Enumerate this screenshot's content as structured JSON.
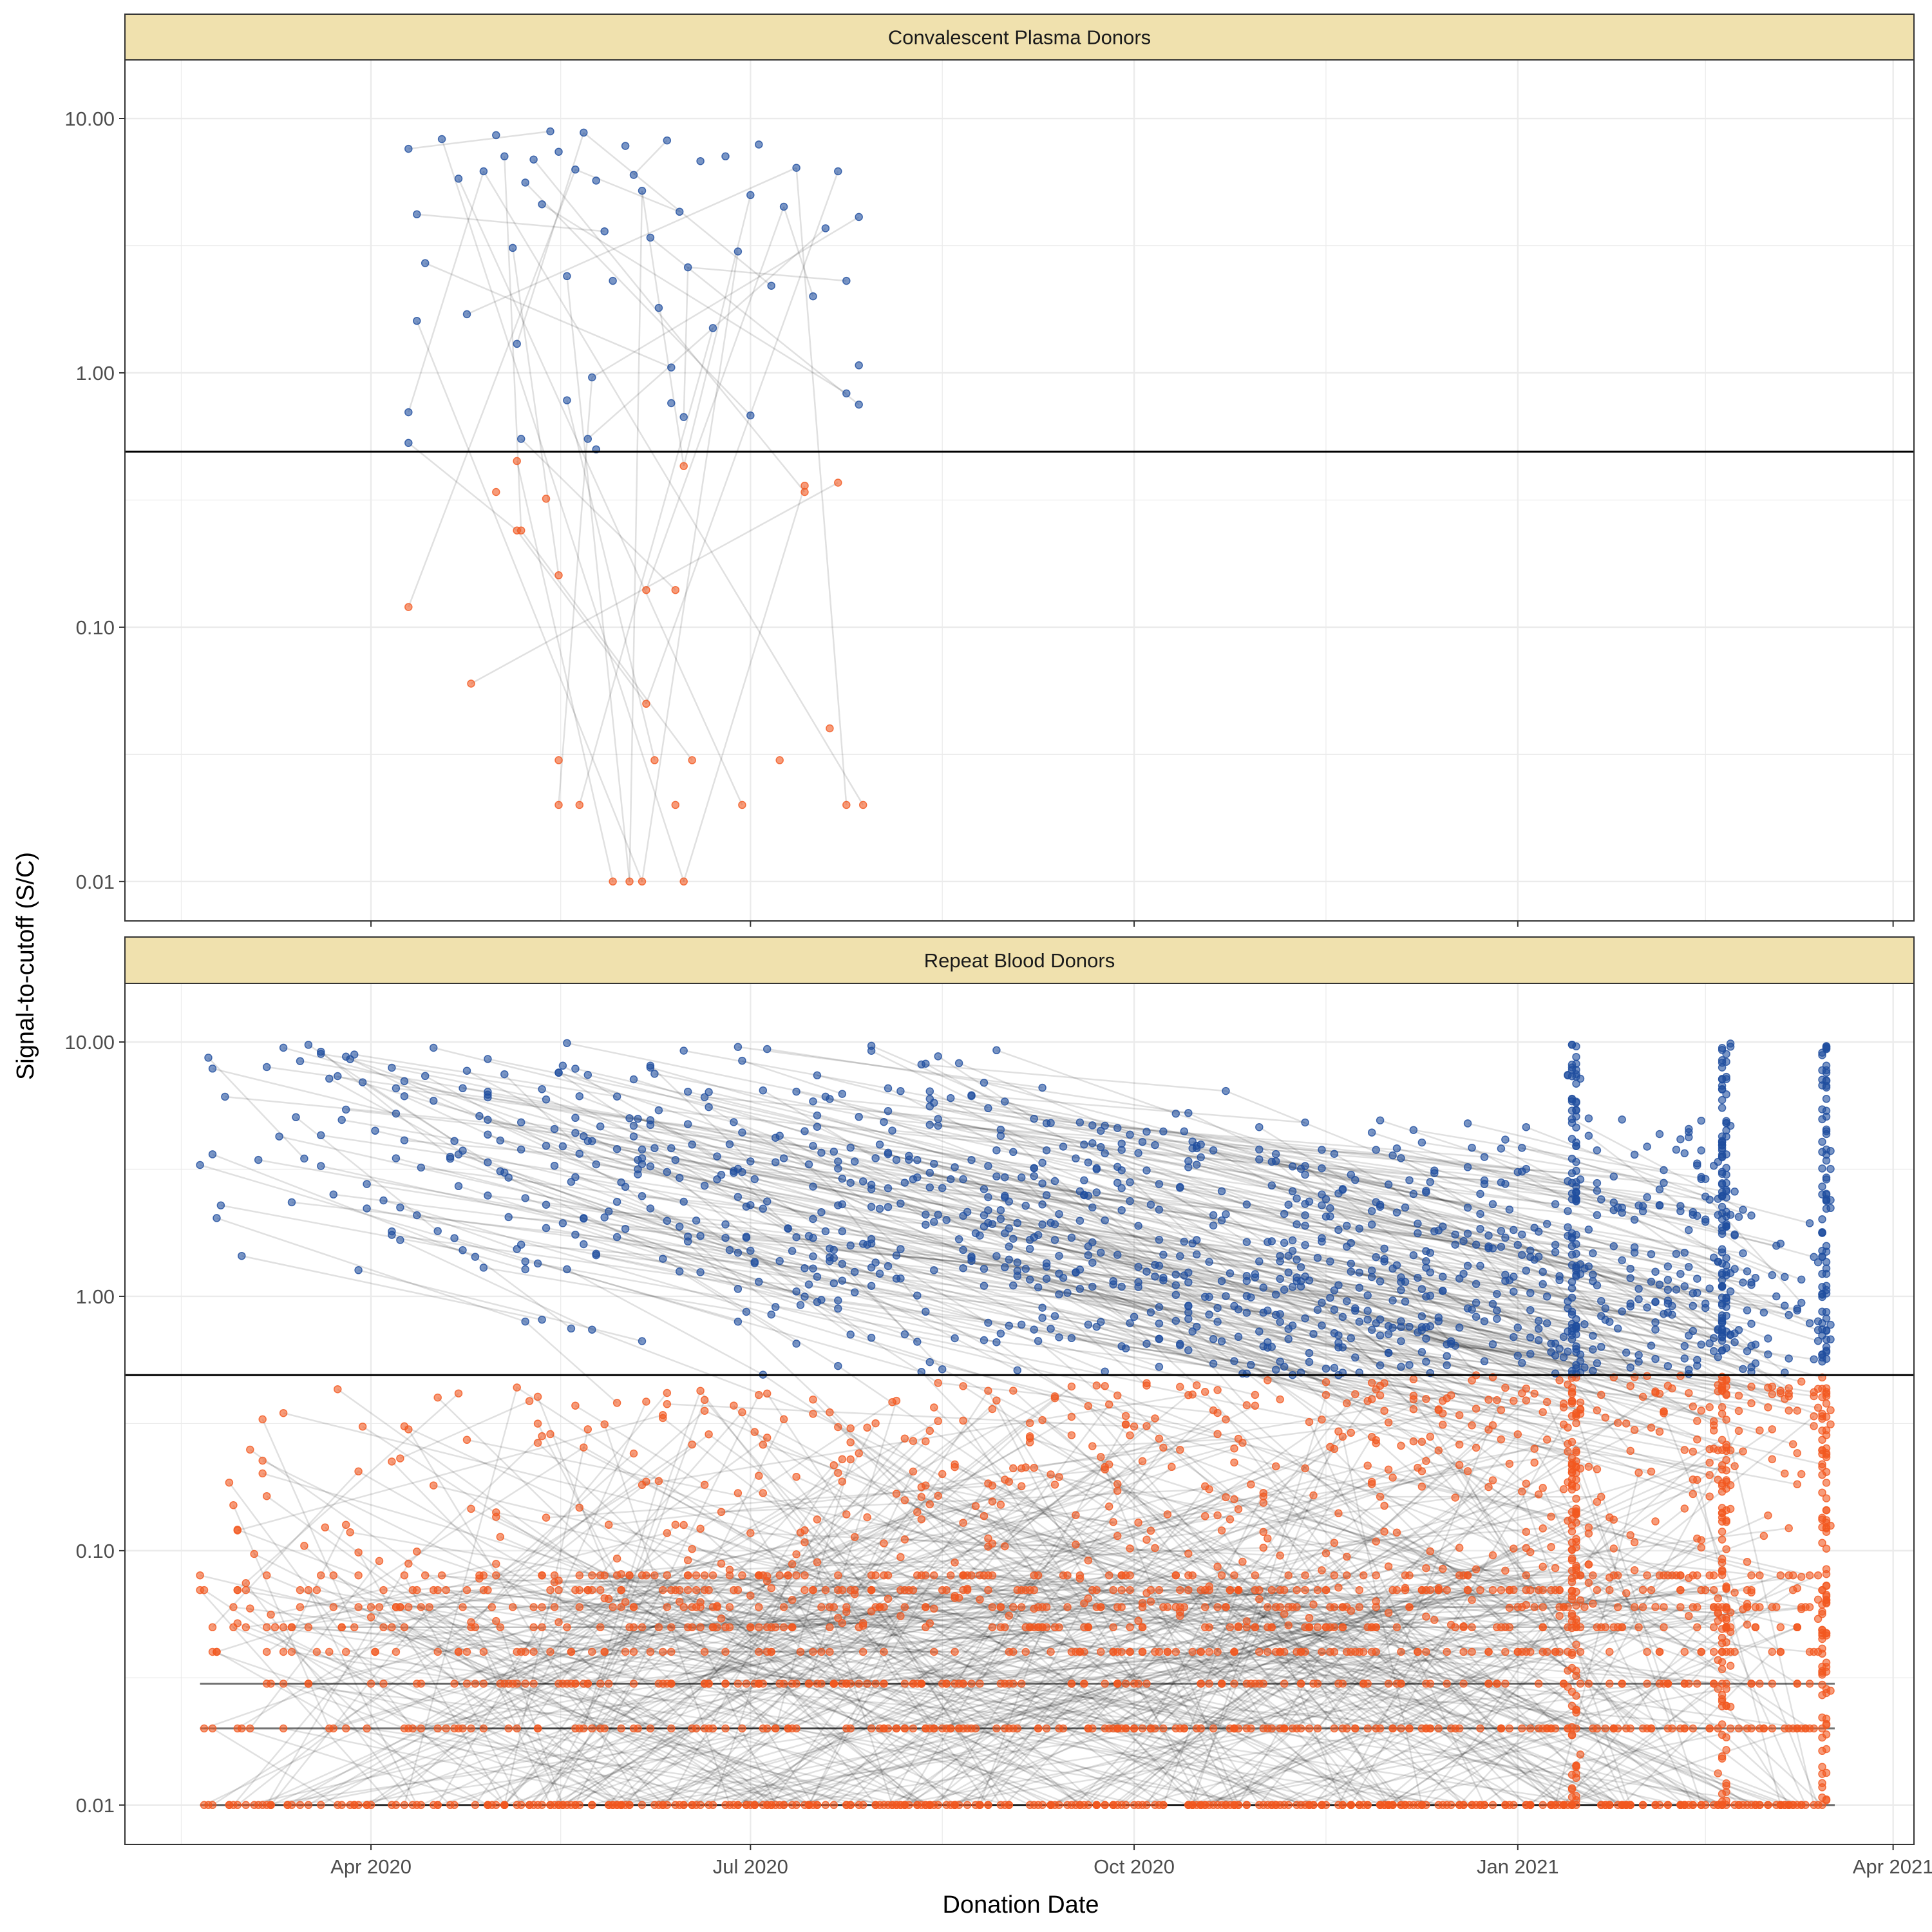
{
  "chart_data": {
    "type": "scatter",
    "xlabel": "Donation Date",
    "ylabel": "Signal-to-cutoff (S/C)",
    "y_scale": "log10",
    "ylim": [
      0.007,
      17
    ],
    "xlim": [
      "2020-02-02",
      "2021-04-06"
    ],
    "x_ticks": [
      {
        "date": "2020-04-01",
        "label": "Apr 2020"
      },
      {
        "date": "2020-07-01",
        "label": "Jul 2020"
      },
      {
        "date": "2020-10-01",
        "label": "Oct 2020"
      },
      {
        "date": "2021-01-01",
        "label": "Jan 2021"
      },
      {
        "date": "2021-04-01",
        "label": "Apr 2021"
      }
    ],
    "y_ticks": [
      {
        "value": 0.01,
        "label": "0.01"
      },
      {
        "value": 0.1,
        "label": "0.10"
      },
      {
        "value": 1,
        "label": "1.00"
      },
      {
        "value": 10,
        "label": "10.00"
      }
    ],
    "cutoff": 0.49,
    "grid": true,
    "colors": {
      "positive": "#1F4E9F",
      "negative": "#F2581F",
      "line": "#000000",
      "strip": "#F0E1AE",
      "grid": "#EBEBEB"
    },
    "panels": [
      {
        "title": "Convalescent Plasma Donors",
        "points": [
          {
            "x": "2020-04-10",
            "y": 0.7
          },
          {
            "x": "2020-04-10",
            "y": 0.53
          },
          {
            "x": "2020-04-10",
            "y": 7.6
          },
          {
            "x": "2020-04-12",
            "y": 4.2
          },
          {
            "x": "2020-04-14",
            "y": 2.7
          },
          {
            "x": "2020-04-12",
            "y": 1.6
          },
          {
            "x": "2020-04-18",
            "y": 8.3
          },
          {
            "x": "2020-04-22",
            "y": 5.8
          },
          {
            "x": "2020-04-24",
            "y": 1.7
          },
          {
            "x": "2020-04-28",
            "y": 6.2
          },
          {
            "x": "2020-05-01",
            "y": 8.6
          },
          {
            "x": "2020-05-03",
            "y": 7.1
          },
          {
            "x": "2020-05-05",
            "y": 3.1
          },
          {
            "x": "2020-05-06",
            "y": 1.3
          },
          {
            "x": "2020-05-08",
            "y": 5.6
          },
          {
            "x": "2020-05-10",
            "y": 6.9
          },
          {
            "x": "2020-05-12",
            "y": 4.6
          },
          {
            "x": "2020-05-14",
            "y": 8.9
          },
          {
            "x": "2020-05-16",
            "y": 7.4
          },
          {
            "x": "2020-05-18",
            "y": 2.4
          },
          {
            "x": "2020-05-20",
            "y": 6.3
          },
          {
            "x": "2020-05-22",
            "y": 8.8
          },
          {
            "x": "2020-05-25",
            "y": 5.7
          },
          {
            "x": "2020-05-27",
            "y": 3.6
          },
          {
            "x": "2020-05-29",
            "y": 2.3
          },
          {
            "x": "2020-06-01",
            "y": 7.8
          },
          {
            "x": "2020-06-03",
            "y": 6.0
          },
          {
            "x": "2020-06-05",
            "y": 5.2
          },
          {
            "x": "2020-06-07",
            "y": 3.4
          },
          {
            "x": "2020-06-09",
            "y": 1.8
          },
          {
            "x": "2020-06-11",
            "y": 8.2
          },
          {
            "x": "2020-06-14",
            "y": 4.3
          },
          {
            "x": "2020-06-16",
            "y": 2.6
          },
          {
            "x": "2020-06-19",
            "y": 6.8
          },
          {
            "x": "2020-06-22",
            "y": 1.5
          },
          {
            "x": "2020-06-25",
            "y": 7.1
          },
          {
            "x": "2020-06-28",
            "y": 3.0
          },
          {
            "x": "2020-07-01",
            "y": 5.0
          },
          {
            "x": "2020-07-03",
            "y": 7.9
          },
          {
            "x": "2020-07-06",
            "y": 2.2
          },
          {
            "x": "2020-07-09",
            "y": 4.5
          },
          {
            "x": "2020-07-12",
            "y": 6.4
          },
          {
            "x": "2020-07-16",
            "y": 2.0
          },
          {
            "x": "2020-07-19",
            "y": 3.7
          },
          {
            "x": "2020-07-22",
            "y": 6.2
          },
          {
            "x": "2020-07-24",
            "y": 2.3
          },
          {
            "x": "2020-07-24",
            "y": 0.83
          },
          {
            "x": "2020-07-27",
            "y": 4.1
          },
          {
            "x": "2020-07-27",
            "y": 1.07
          },
          {
            "x": "2020-07-27",
            "y": 0.75
          },
          {
            "x": "2020-05-18",
            "y": 0.78
          },
          {
            "x": "2020-05-24",
            "y": 0.96
          },
          {
            "x": "2020-06-12",
            "y": 1.05
          },
          {
            "x": "2020-06-12",
            "y": 0.76
          },
          {
            "x": "2020-06-15",
            "y": 0.67
          },
          {
            "x": "2020-07-01",
            "y": 0.68
          },
          {
            "x": "2020-05-07",
            "y": 0.55
          },
          {
            "x": "2020-05-23",
            "y": 0.55
          },
          {
            "x": "2020-05-25",
            "y": 0.5
          },
          {
            "x": "2020-05-06",
            "y": 0.45
          },
          {
            "x": "2020-05-01",
            "y": 0.34
          },
          {
            "x": "2020-05-06",
            "y": 0.24
          },
          {
            "x": "2020-05-07",
            "y": 0.24
          },
          {
            "x": "2020-05-13",
            "y": 0.32
          },
          {
            "x": "2020-05-16",
            "y": 0.16
          },
          {
            "x": "2020-06-15",
            "y": 0.43
          },
          {
            "x": "2020-07-14",
            "y": 0.36
          },
          {
            "x": "2020-07-14",
            "y": 0.34
          },
          {
            "x": "2020-07-22",
            "y": 0.37
          },
          {
            "x": "2020-04-10",
            "y": 0.12
          },
          {
            "x": "2020-06-06",
            "y": 0.14
          },
          {
            "x": "2020-06-13",
            "y": 0.14
          },
          {
            "x": "2020-04-25",
            "y": 0.06
          },
          {
            "x": "2020-06-06",
            "y": 0.05
          },
          {
            "x": "2020-07-20",
            "y": 0.04
          },
          {
            "x": "2020-05-16",
            "y": 0.03
          },
          {
            "x": "2020-06-08",
            "y": 0.03
          },
          {
            "x": "2020-06-17",
            "y": 0.03
          },
          {
            "x": "2020-07-08",
            "y": 0.03
          },
          {
            "x": "2020-05-16",
            "y": 0.02
          },
          {
            "x": "2020-05-21",
            "y": 0.02
          },
          {
            "x": "2020-06-13",
            "y": 0.02
          },
          {
            "x": "2020-06-29",
            "y": 0.02
          },
          {
            "x": "2020-07-24",
            "y": 0.02
          },
          {
            "x": "2020-07-28",
            "y": 0.02
          },
          {
            "x": "2020-05-29",
            "y": 0.01
          },
          {
            "x": "2020-06-02",
            "y": 0.01
          },
          {
            "x": "2020-06-05",
            "y": 0.01
          },
          {
            "x": "2020-06-15",
            "y": 0.01
          }
        ]
      },
      {
        "title": "Repeat Blood Donors",
        "points": []
      }
    ]
  }
}
